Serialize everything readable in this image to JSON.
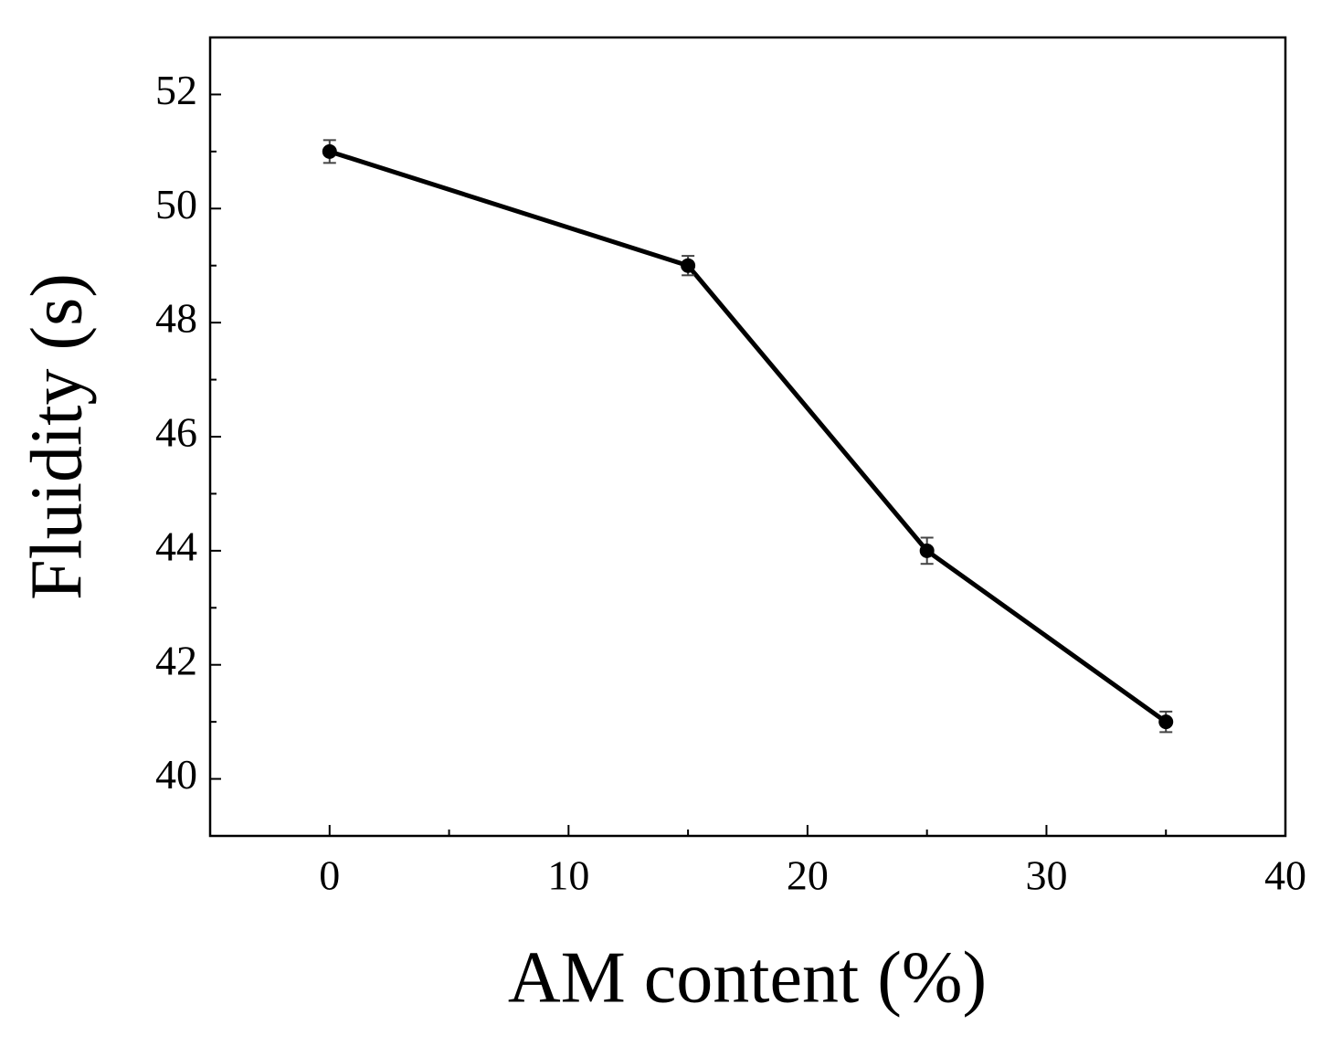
{
  "chart_data": {
    "type": "line",
    "x_label": "AM content (%)",
    "y_label": "Fluidity (s)",
    "x": [
      0,
      15,
      25,
      35
    ],
    "values": [
      51,
      49,
      44,
      41
    ],
    "errors": [
      0.2,
      0.17,
      0.23,
      0.18
    ],
    "color": "#000000",
    "xlim": [
      -5,
      40
    ],
    "ylim": [
      39,
      53
    ],
    "xticks": [
      0,
      10,
      20,
      30,
      40
    ],
    "yticks": [
      40,
      42,
      44,
      46,
      48,
      50,
      52
    ],
    "xminorticks": [
      5,
      15,
      25,
      35
    ],
    "yminorticks": [
      41,
      43,
      45,
      47,
      49,
      51
    ],
    "grid": false
  }
}
